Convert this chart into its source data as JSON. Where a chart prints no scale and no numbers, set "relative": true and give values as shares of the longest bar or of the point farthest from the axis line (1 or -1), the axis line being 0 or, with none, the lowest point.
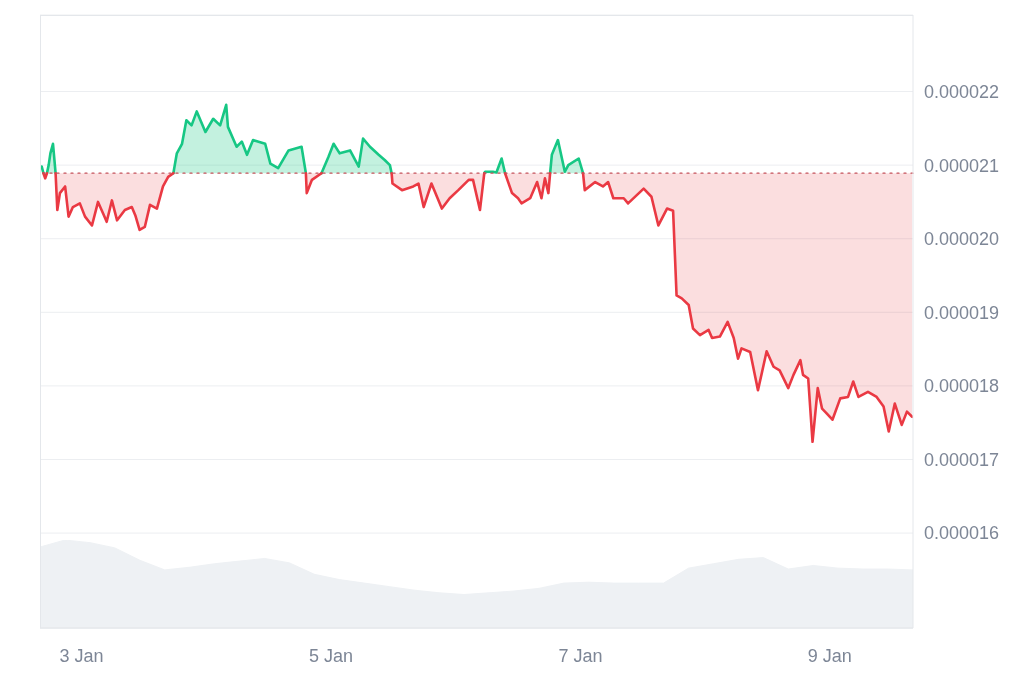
{
  "chart_data": [
    {
      "type": "line",
      "x": [
        "--01-02T16:20",
        "--01-02T16:40",
        "--01-02T17:00",
        "--01-02T17:20",
        "--01-02T17:40",
        "--01-02T18:00",
        "--01-02T18:30",
        "--01-02T19:00",
        "--01-02T19:20",
        "--01-02T19:50",
        "--01-02T20:50",
        "--01-02T21:30",
        "--01-02T22:20",
        "--01-02T23:40",
        "--01-03T00:40",
        "--01-03T02:00",
        "--01-03T03:10",
        "--01-03T04:10",
        "--01-03T04:50",
        "--01-03T05:50",
        "--01-03T06:50",
        "--01-03T08:20",
        "--01-03T09:40",
        "--01-03T10:20",
        "--01-03T11:10",
        "--01-03T12:10",
        "--01-03T13:10",
        "--01-03T14:30",
        "--01-03T15:40",
        "--01-03T16:40",
        "--01-03T17:40",
        "--01-03T18:20",
        "--01-03T19:20",
        "--01-03T20:10",
        "--01-03T21:10",
        "--01-03T22:10",
        "--01-03T23:50",
        "--01-04T01:20",
        "--01-04T02:40",
        "--01-04T03:50",
        "--01-04T04:10",
        "--01-04T05:50",
        "--01-04T06:50",
        "--01-04T07:50",
        "--01-04T09:00",
        "--01-04T11:20",
        "--01-04T12:20",
        "--01-04T13:50",
        "--01-04T15:50",
        "--01-04T18:20",
        "--01-04T19:10",
        "--01-04T19:20",
        "--01-04T20:20",
        "--01-04T22:10",
        "--01-04T23:30",
        "--01-05T00:30",
        "--01-05T01:40",
        "--01-05T03:40",
        "--01-05T05:20",
        "--01-05T06:10",
        "--01-05T07:30",
        "--01-05T09:10",
        "--01-05T10:20",
        "--01-05T11:20",
        "--01-05T11:40",
        "--01-05T11:50",
        "--01-05T13:40",
        "--01-05T15:50",
        "--01-05T16:50",
        "--01-05T17:50",
        "--01-05T19:20",
        "--01-05T21:20",
        "--01-05T22:50",
        "--01-06T00:30",
        "--01-06T02:30",
        "--01-06T03:20",
        "--01-06T04:40",
        "--01-06T05:30",
        "--01-06T05:40",
        "--01-06T07:10",
        "--01-06T07:50",
        "--01-06T08:50",
        "--01-06T09:30",
        "--01-06T10:50",
        "--01-06T12:00",
        "--01-06T12:40",
        "--01-06T14:20",
        "--01-06T15:40",
        "--01-06T16:30",
        "--01-06T17:10",
        "--01-06T17:50",
        "--01-06T18:10",
        "--01-06T18:30",
        "--01-06T19:40",
        "--01-06T21:00",
        "--01-06T21:40",
        "--01-06T23:40",
        "--01-07T00:30",
        "--01-07T00:50",
        "--01-07T02:50",
        "--01-07T04:20",
        "--01-07T05:20",
        "--01-07T06:20",
        "--01-07T08:20",
        "--01-07T09:10",
        "--01-07T12:10",
        "--01-07T13:40",
        "--01-07T15:00",
        "--01-07T16:40",
        "--01-07T17:50",
        "--01-07T18:30",
        "--01-07T19:30",
        "--01-07T20:50",
        "--01-07T21:40",
        "--01-07T23:00",
        "--01-08T00:40",
        "--01-08T01:20",
        "--01-08T02:50",
        "--01-08T04:20",
        "--01-08T05:30",
        "--01-08T06:20",
        "--01-08T07:00",
        "--01-08T08:40",
        "--01-08T10:10",
        "--01-08T11:50",
        "--01-08T13:10",
        "--01-08T14:20",
        "--01-08T16:00",
        "--01-08T17:00",
        "--01-08T18:20",
        "--01-08T18:50",
        "--01-08T19:50",
        "--01-08T20:40",
        "--01-08T21:40",
        "--01-08T22:30",
        "--01-08T23:20",
        "--01-09T00:30",
        "--01-09T02:00",
        "--01-09T03:30",
        "--01-09T04:30",
        "--01-09T05:30",
        "--01-09T07:20",
        "--01-09T09:00",
        "--01-09T10:20",
        "--01-09T11:20",
        "--01-09T12:30",
        "--01-09T13:50",
        "--01-09T14:50",
        "--01-09T15:50"
      ],
      "series": [
        {
          "color": "#16c784",
          "values": [
            2.098e-05,
            2.089e-05,
            null,
            2.089e-05,
            2.1e-05,
            2.116e-05,
            2.129e-05,
            2.089e-05,
            null,
            null,
            null,
            null,
            null,
            null,
            null,
            null,
            null,
            null,
            null,
            null,
            null,
            null,
            null,
            null,
            null,
            null,
            null,
            null,
            null,
            null,
            2.089e-05,
            2.116e-05,
            2.129e-05,
            2.161e-05,
            2.154e-05,
            2.173e-05,
            2.145e-05,
            2.163e-05,
            2.154e-05,
            2.182e-05,
            2.152e-05,
            2.125e-05,
            2.132e-05,
            2.114e-05,
            2.134e-05,
            2.129e-05,
            2.102e-05,
            2.096e-05,
            2.12e-05,
            2.125e-05,
            2.089e-05,
            null,
            null,
            2.089e-05,
            2.111e-05,
            2.129e-05,
            2.116e-05,
            2.12e-05,
            2.098e-05,
            2.136e-05,
            2.125e-05,
            2.114e-05,
            2.107e-05,
            2.1e-05,
            2.089e-05,
            null,
            null,
            null,
            null,
            null,
            null,
            null,
            null,
            null,
            null,
            null,
            null,
            2.089e-05,
            2.091e-05,
            2.091e-05,
            2.09e-05,
            2.109e-05,
            2.089e-05,
            null,
            null,
            null,
            null,
            null,
            null,
            null,
            null,
            2.089e-05,
            2.114e-05,
            2.134e-05,
            2.091e-05,
            2.1e-05,
            2.109e-05,
            2.089e-05,
            null,
            null,
            null,
            null,
            null,
            null,
            null,
            null,
            null,
            null,
            null,
            null,
            null,
            null,
            null,
            null,
            null,
            null,
            null,
            null,
            null,
            null,
            null,
            null,
            null,
            null,
            null,
            null,
            null,
            null,
            null,
            null,
            null,
            null,
            null,
            null,
            null,
            null,
            null,
            null,
            null,
            null,
            null,
            null,
            null,
            null,
            null,
            null,
            null,
            null,
            null
          ],
          "lower": [
            null,
            null,
            null,
            2.089e-05,
            2.089e-05,
            2.089e-05,
            2.089e-05,
            2.089e-05,
            null,
            null,
            null,
            null,
            null,
            null,
            null,
            null,
            null,
            null,
            null,
            null,
            null,
            null,
            null,
            null,
            null,
            null,
            null,
            null,
            null,
            null,
            2.089e-05,
            2.089e-05,
            2.089e-05,
            2.089e-05,
            2.089e-05,
            2.089e-05,
            2.089e-05,
            2.089e-05,
            2.089e-05,
            2.089e-05,
            2.089e-05,
            2.089e-05,
            2.089e-05,
            2.089e-05,
            2.089e-05,
            2.089e-05,
            2.089e-05,
            2.089e-05,
            2.089e-05,
            2.089e-05,
            2.089e-05,
            null,
            null,
            2.089e-05,
            2.089e-05,
            2.089e-05,
            2.089e-05,
            2.089e-05,
            2.089e-05,
            2.089e-05,
            2.089e-05,
            2.089e-05,
            2.089e-05,
            2.089e-05,
            2.089e-05,
            null,
            null,
            null,
            null,
            null,
            null,
            null,
            null,
            null,
            null,
            null,
            null,
            2.089e-05,
            2.089e-05,
            2.089e-05,
            2.089e-05,
            2.089e-05,
            2.089e-05,
            null,
            null,
            null,
            null,
            null,
            null,
            null,
            null,
            2.089e-05,
            2.089e-05,
            2.089e-05,
            2.089e-05,
            2.089e-05,
            2.089e-05,
            2.089e-05,
            null,
            null,
            null,
            null,
            null,
            null,
            null,
            null,
            null,
            null,
            null,
            null,
            null,
            null,
            null,
            null,
            null,
            null,
            null,
            null,
            null,
            null,
            null,
            null,
            null,
            null,
            null,
            null,
            null,
            null,
            null,
            null,
            null,
            null,
            null,
            null,
            null,
            null,
            null,
            null,
            null,
            null,
            null,
            null,
            null,
            null,
            null,
            null,
            null,
            null,
            null
          ],
          "upper": [
            null,
            null,
            null,
            2.089e-05,
            2.1e-05,
            2.116e-05,
            2.129e-05,
            2.089e-05,
            null,
            null,
            null,
            null,
            null,
            null,
            null,
            null,
            null,
            null,
            null,
            null,
            null,
            null,
            null,
            null,
            null,
            null,
            null,
            null,
            null,
            null,
            2.089e-05,
            2.116e-05,
            2.129e-05,
            2.161e-05,
            2.154e-05,
            2.173e-05,
            2.145e-05,
            2.163e-05,
            2.154e-05,
            2.182e-05,
            2.152e-05,
            2.125e-05,
            2.132e-05,
            2.114e-05,
            2.134e-05,
            2.129e-05,
            2.102e-05,
            2.096e-05,
            2.12e-05,
            2.125e-05,
            2.089e-05,
            null,
            null,
            2.089e-05,
            2.111e-05,
            2.129e-05,
            2.116e-05,
            2.12e-05,
            2.098e-05,
            2.136e-05,
            2.125e-05,
            2.114e-05,
            2.107e-05,
            2.1e-05,
            2.089e-05,
            null,
            null,
            null,
            null,
            null,
            null,
            null,
            null,
            null,
            null,
            null,
            null,
            2.089e-05,
            2.091e-05,
            2.091e-05,
            2.09e-05,
            2.109e-05,
            2.089e-05,
            null,
            null,
            null,
            null,
            null,
            null,
            null,
            null,
            2.089e-05,
            2.114e-05,
            2.134e-05,
            2.091e-05,
            2.1e-05,
            2.109e-05,
            2.089e-05,
            null,
            null,
            null,
            null,
            null,
            null,
            null,
            null,
            null,
            null,
            null,
            null,
            null,
            null,
            null,
            null,
            null,
            null,
            null,
            null,
            null,
            null,
            null,
            null,
            null,
            null,
            null,
            null,
            null,
            null,
            null,
            null,
            null,
            null,
            null,
            null,
            null,
            null,
            null,
            null,
            null,
            null,
            null,
            null,
            null,
            null,
            null,
            null,
            null,
            null,
            null
          ]
        },
        {
          "color": "#ea3943",
          "values": [
            null,
            2.089e-05,
            2.082e-05,
            2.089e-05,
            null,
            null,
            null,
            2.089e-05,
            2.039e-05,
            2.062e-05,
            2.071e-05,
            2.03e-05,
            2.043e-05,
            2.048e-05,
            2.03e-05,
            2.018e-05,
            2.05e-05,
            2.034e-05,
            2.023e-05,
            2.052e-05,
            2.025e-05,
            2.039e-05,
            2.043e-05,
            2.032e-05,
            2.012e-05,
            2.016e-05,
            2.046e-05,
            2.041e-05,
            2.071e-05,
            2.084e-05,
            2.089e-05,
            null,
            null,
            null,
            null,
            null,
            null,
            null,
            null,
            null,
            null,
            null,
            null,
            null,
            null,
            null,
            null,
            null,
            null,
            null,
            2.089e-05,
            2.062e-05,
            2.08e-05,
            2.089e-05,
            null,
            null,
            null,
            null,
            null,
            null,
            null,
            null,
            null,
            null,
            2.089e-05,
            2.075e-05,
            2.066e-05,
            2.071e-05,
            2.075e-05,
            2.043e-05,
            2.075e-05,
            2.041e-05,
            2.055e-05,
            2.066e-05,
            2.08e-05,
            2.08e-05,
            2.039e-05,
            2.089e-05,
            null,
            null,
            null,
            null,
            2.089e-05,
            2.062e-05,
            2.055e-05,
            2.048e-05,
            2.055e-05,
            2.077e-05,
            2.055e-05,
            2.082e-05,
            2.062e-05,
            2.089e-05,
            null,
            null,
            null,
            null,
            null,
            2.089e-05,
            2.066e-05,
            2.077e-05,
            2.071e-05,
            2.077e-05,
            2.055e-05,
            2.055e-05,
            2.048e-05,
            2.068e-05,
            2.057e-05,
            2.018e-05,
            2.041e-05,
            2.038e-05,
            1.923e-05,
            1.919e-05,
            1.91e-05,
            1.878e-05,
            1.869e-05,
            1.876e-05,
            1.865e-05,
            1.867e-05,
            1.887e-05,
            1.865e-05,
            1.837e-05,
            1.851e-05,
            1.846e-05,
            1.794e-05,
            1.847e-05,
            1.826e-05,
            1.821e-05,
            1.797e-05,
            1.815e-05,
            1.835e-05,
            1.815e-05,
            1.81e-05,
            1.724e-05,
            1.797e-05,
            1.769e-05,
            1.763e-05,
            1.754e-05,
            1.783e-05,
            1.785e-05,
            1.806e-05,
            1.785e-05,
            1.792e-05,
            1.785e-05,
            1.772e-05,
            1.738e-05,
            1.776e-05,
            1.747e-05,
            1.765e-05,
            1.758e-05
          ],
          "lower": [
            null,
            null,
            null,
            null,
            null,
            null,
            null,
            2.089e-05,
            2.039e-05,
            2.062e-05,
            2.071e-05,
            2.03e-05,
            2.043e-05,
            2.048e-05,
            2.03e-05,
            2.018e-05,
            2.05e-05,
            2.034e-05,
            2.023e-05,
            2.052e-05,
            2.025e-05,
            2.039e-05,
            2.043e-05,
            2.032e-05,
            2.012e-05,
            2.016e-05,
            2.046e-05,
            2.041e-05,
            2.071e-05,
            2.084e-05,
            2.089e-05,
            null,
            null,
            null,
            null,
            null,
            null,
            null,
            null,
            null,
            null,
            null,
            null,
            null,
            null,
            null,
            null,
            null,
            null,
            null,
            2.089e-05,
            2.062e-05,
            2.08e-05,
            2.089e-05,
            null,
            null,
            null,
            null,
            null,
            null,
            null,
            null,
            null,
            null,
            2.089e-05,
            2.075e-05,
            2.066e-05,
            2.071e-05,
            2.075e-05,
            2.043e-05,
            2.075e-05,
            2.041e-05,
            2.055e-05,
            2.066e-05,
            2.08e-05,
            2.08e-05,
            2.039e-05,
            2.089e-05,
            null,
            null,
            null,
            null,
            2.089e-05,
            2.062e-05,
            2.055e-05,
            2.048e-05,
            2.055e-05,
            2.077e-05,
            2.055e-05,
            2.082e-05,
            2.062e-05,
            2.089e-05,
            null,
            null,
            null,
            null,
            null,
            2.089e-05,
            2.066e-05,
            2.077e-05,
            2.071e-05,
            2.077e-05,
            2.055e-05,
            2.055e-05,
            2.048e-05,
            2.068e-05,
            2.057e-05,
            2.018e-05,
            2.041e-05,
            2.038e-05,
            1.923e-05,
            1.919e-05,
            1.91e-05,
            1.878e-05,
            1.869e-05,
            1.876e-05,
            1.865e-05,
            1.867e-05,
            1.887e-05,
            1.865e-05,
            1.837e-05,
            1.851e-05,
            1.846e-05,
            1.794e-05,
            1.847e-05,
            1.826e-05,
            1.821e-05,
            1.797e-05,
            1.815e-05,
            1.835e-05,
            1.815e-05,
            1.81e-05,
            1.724e-05,
            1.797e-05,
            1.769e-05,
            1.763e-05,
            1.754e-05,
            1.783e-05,
            1.785e-05,
            1.806e-05,
            1.785e-05,
            1.792e-05,
            1.785e-05,
            1.772e-05,
            1.738e-05,
            1.776e-05,
            1.747e-05,
            1.765e-05,
            1.758e-05
          ],
          "upper": [
            null,
            null,
            null,
            null,
            null,
            null,
            null,
            2.089e-05,
            2.089e-05,
            2.089e-05,
            2.089e-05,
            2.089e-05,
            2.089e-05,
            2.089e-05,
            2.089e-05,
            2.089e-05,
            2.089e-05,
            2.089e-05,
            2.089e-05,
            2.089e-05,
            2.089e-05,
            2.089e-05,
            2.089e-05,
            2.089e-05,
            2.089e-05,
            2.089e-05,
            2.089e-05,
            2.089e-05,
            2.089e-05,
            2.089e-05,
            2.089e-05,
            null,
            null,
            null,
            null,
            null,
            null,
            null,
            null,
            null,
            null,
            null,
            null,
            null,
            null,
            null,
            null,
            null,
            null,
            null,
            2.089e-05,
            2.089e-05,
            2.089e-05,
            2.089e-05,
            null,
            null,
            null,
            null,
            null,
            null,
            null,
            null,
            null,
            null,
            2.089e-05,
            2.089e-05,
            2.089e-05,
            2.089e-05,
            2.089e-05,
            2.089e-05,
            2.089e-05,
            2.089e-05,
            2.089e-05,
            2.089e-05,
            2.089e-05,
            2.089e-05,
            2.089e-05,
            2.089e-05,
            null,
            null,
            null,
            null,
            2.089e-05,
            2.089e-05,
            2.089e-05,
            2.089e-05,
            2.089e-05,
            2.089e-05,
            2.089e-05,
            2.089e-05,
            2.089e-05,
            2.089e-05,
            null,
            null,
            null,
            null,
            null,
            2.089e-05,
            2.089e-05,
            2.089e-05,
            2.089e-05,
            2.089e-05,
            2.089e-05,
            2.089e-05,
            2.089e-05,
            2.089e-05,
            2.089e-05,
            2.089e-05,
            2.089e-05,
            2.089e-05,
            2.089e-05,
            2.089e-05,
            2.089e-05,
            2.089e-05,
            2.089e-05,
            2.089e-05,
            2.089e-05,
            2.089e-05,
            2.089e-05,
            2.089e-05,
            2.089e-05,
            2.089e-05,
            2.089e-05,
            2.089e-05,
            2.089e-05,
            2.089e-05,
            2.089e-05,
            2.089e-05,
            2.089e-05,
            2.089e-05,
            2.089e-05,
            2.089e-05,
            2.089e-05,
            2.089e-05,
            2.089e-05,
            2.089e-05,
            2.089e-05,
            2.089e-05,
            2.089e-05,
            2.089e-05,
            2.089e-05,
            2.089e-05,
            2.089e-05,
            2.089e-05,
            2.089e-05,
            2.089e-05,
            2.089e-05,
            2.089e-05,
            2.089e-05
          ]
        }
      ],
      "xlim": [
        "--01-02T16:00",
        "--01-09T16:00"
      ],
      "xticks": [
        {
          "value": "--01-03",
          "label": "3 Jan"
        },
        {
          "value": "--01-05",
          "label": "5 Jan"
        },
        {
          "value": "--01-07",
          "label": "7 Jan"
        },
        {
          "value": "--01-09",
          "label": "9 Jan"
        }
      ],
      "ylim": [
        1.471e-05,
        2.304e-05
      ],
      "yticks": [
        {
          "value": 1.6e-05,
          "label": "0.000016"
        },
        {
          "value": 1.7e-05,
          "label": "0.000017"
        },
        {
          "value": 1.8e-05,
          "label": "0.000018"
        },
        {
          "value": 1.9e-05,
          "label": "0.000019"
        },
        {
          "value": 2e-05,
          "label": "0.000020"
        },
        {
          "value": 2.1e-05,
          "label": "0.000021"
        },
        {
          "value": 2.2e-05,
          "label": "0.000022"
        }
      ],
      "ref_lines": [
        {
          "axis": "y",
          "value": 2.089e-05,
          "color": "#c4505a",
          "line_style": "dotted"
        }
      ],
      "grid": "y"
    },
    {
      "type": "area",
      "relative": true,
      "categories": [
        null,
        null,
        null,
        null,
        null,
        null,
        null,
        null,
        null,
        null,
        null,
        null,
        null,
        null,
        null,
        null,
        null,
        null,
        null,
        null,
        null,
        null,
        null,
        null,
        null,
        null,
        null,
        null,
        null,
        null,
        null,
        null,
        null,
        null,
        null,
        null
      ],
      "values": [
        0.92,
        1,
        0.97,
        0.91,
        0.77,
        0.66,
        0.69,
        0.73,
        0.76,
        0.79,
        0.74,
        0.61,
        0.55,
        0.51,
        0.47,
        0.43,
        0.4,
        0.38,
        0.4,
        0.42,
        0.45,
        0.51,
        0.52,
        0.51,
        0.51,
        0.51,
        0.68,
        0.73,
        0.78,
        0.8,
        0.67,
        0.71,
        0.68,
        0.67,
        0.67,
        0.66
      ],
      "color": "#eef1f4"
    }
  ]
}
